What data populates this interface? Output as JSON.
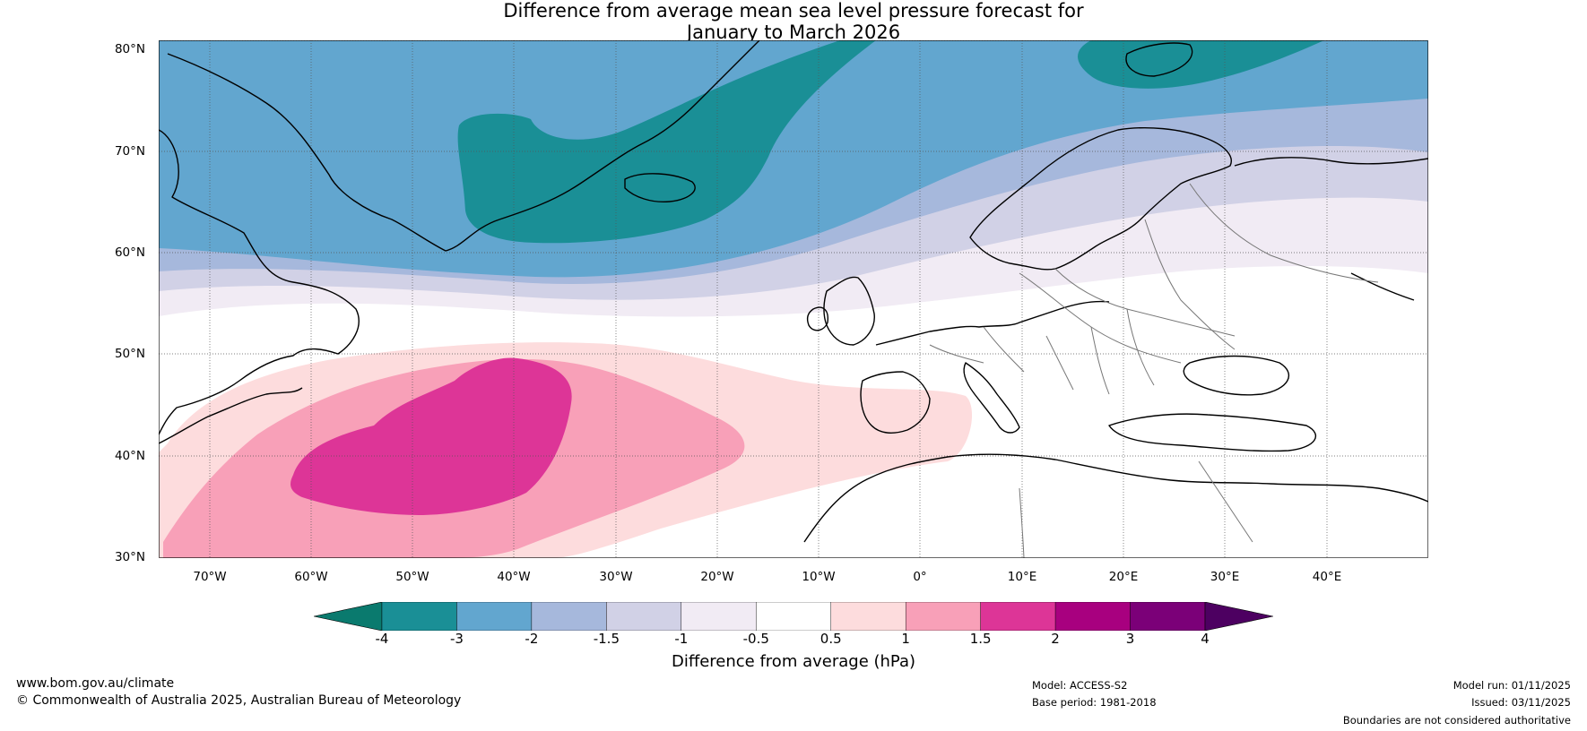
{
  "title_line1": "Difference from average mean sea level pressure forecast for",
  "title_line2": "January to March 2026",
  "lat_labels": [
    "80°N",
    "70°N",
    "60°N",
    "50°N",
    "40°N",
    "30°N"
  ],
  "lon_labels": [
    "70°W",
    "60°W",
    "50°W",
    "40°W",
    "30°W",
    "20°W",
    "10°W",
    "0°",
    "10°E",
    "20°E",
    "30°E",
    "40°E"
  ],
  "legend": {
    "title": "Difference from average (hPa)",
    "ticks": [
      "-4",
      "-3",
      "-2",
      "-1.5",
      "-1",
      "-0.5",
      "0.5",
      "1",
      "1.5",
      "2",
      "3",
      "4"
    ],
    "colors": [
      "#0a7a6e",
      "#1a8f96",
      "#62a6cf",
      "#a6b8dc",
      "#d1d1e6",
      "#f1ebf4",
      "#ffffff",
      "#fddcdd",
      "#f8a0b8",
      "#dd3597",
      "#a8007f",
      "#7b0078",
      "#4d0061"
    ]
  },
  "footer": {
    "website": "www.bom.gov.au/climate",
    "copyright": "© Commonwealth of Australia 2025, Australian Bureau of Meteorology",
    "model": "Model: ACCESS-S2",
    "base_period": "Base period: 1981-2018",
    "model_run": "Model run: 01/11/2025",
    "issued": "Issued: 03/11/2025",
    "disclaimer": "Boundaries are not considered authoritative"
  }
}
